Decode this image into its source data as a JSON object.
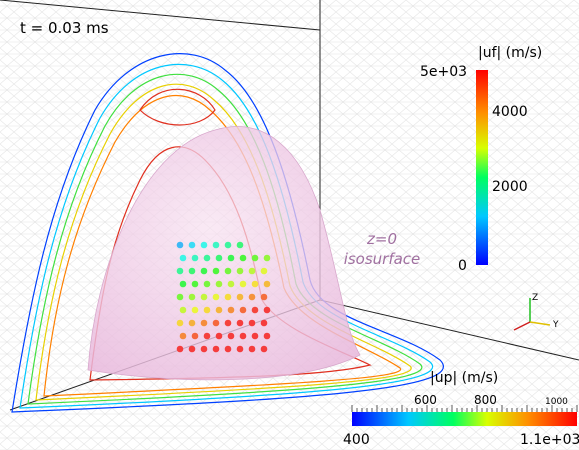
{
  "time_label": "t = 0.03 ms",
  "isosurface_label": [
    "z=0",
    "isosurface"
  ],
  "fluid_colorbar": {
    "title": "|uf| (m/s)",
    "ticks": [
      "5e+03",
      "4000",
      "2000",
      "0"
    ]
  },
  "particle_colorbar": {
    "title": "|up| (m/s)",
    "min_label": "400",
    "max_label": "1.1e+03",
    "ticks": [
      "600",
      "800",
      "1000"
    ]
  },
  "axes_triad": [
    "Z",
    "Y"
  ]
}
